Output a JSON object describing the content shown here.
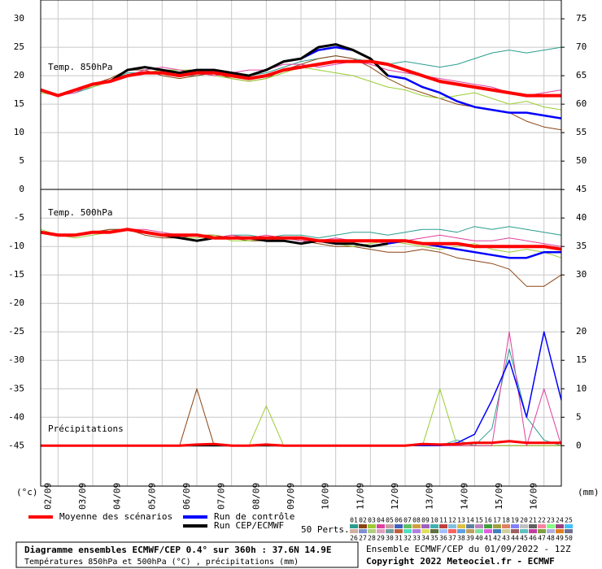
{
  "chart_data": {
    "type": "line",
    "x": [
      0,
      12,
      24,
      36,
      48,
      60,
      72,
      84,
      96,
      108,
      120,
      132,
      144,
      156,
      168,
      180,
      192,
      204,
      216,
      228,
      240,
      252,
      264,
      276,
      288,
      300,
      312,
      324,
      336,
      348,
      360
    ],
    "xlim": [
      0,
      360
    ],
    "xticks": [
      {
        "value": 12,
        "label": "02/09"
      },
      {
        "value": 36,
        "label": "03/09"
      },
      {
        "value": 60,
        "label": "04/09"
      },
      {
        "value": 84,
        "label": "05/09"
      },
      {
        "value": 108,
        "label": "06/09"
      },
      {
        "value": 132,
        "label": "07/09"
      },
      {
        "value": 156,
        "label": "08/09"
      },
      {
        "value": 180,
        "label": "09/09"
      },
      {
        "value": 204,
        "label": "10/09"
      },
      {
        "value": 228,
        "label": "11/09"
      },
      {
        "value": 252,
        "label": "12/09"
      },
      {
        "value": 276,
        "label": "13/09"
      },
      {
        "value": 300,
        "label": "14/09"
      },
      {
        "value": 324,
        "label": "15/09"
      },
      {
        "value": 348,
        "label": "16/09"
      }
    ],
    "ylim": [
      -52.1,
      33.3
    ],
    "yticks": [
      30,
      25,
      20,
      15,
      10,
      5,
      0,
      -5,
      -10,
      -15,
      -20,
      -25,
      -30,
      -35,
      -40,
      -45
    ],
    "y2lim": [
      -7.1,
      78.3
    ],
    "y2ticks": [
      75,
      70,
      65,
      60,
      55,
      50,
      45,
      40,
      35,
      30,
      20,
      15,
      10,
      5,
      0
    ],
    "y_unit": "(°c)",
    "y2_unit": "(mm)",
    "grid": true,
    "annotations": [
      "Temp. 850hPa",
      "Temp. 500hPa",
      "Précipitations"
    ],
    "series": [
      {
        "name": "Moyenne des scénarios",
        "color": "#ff0000",
        "t850": [
          17.5,
          16.5,
          17.5,
          18.5,
          19,
          20,
          20.5,
          20.5,
          20,
          20.5,
          20.5,
          20,
          19.5,
          20,
          21,
          21.5,
          22,
          22.5,
          22.5,
          22.5,
          22,
          21,
          20,
          19,
          18.5,
          18,
          17.5,
          17,
          16.5,
          16.5,
          16.5
        ],
        "t500": [
          -7.5,
          -8,
          -8,
          -7.5,
          -7.5,
          -7,
          -7.5,
          -8,
          -8,
          -8,
          -8.5,
          -8.5,
          -8.5,
          -8.5,
          -8.5,
          -8.5,
          -9,
          -9,
          -9,
          -9,
          -9,
          -9,
          -9.5,
          -9.5,
          -9.5,
          -10,
          -10,
          -10,
          -10,
          -10,
          -10.5
        ],
        "precip": [
          0,
          0,
          0,
          0,
          0,
          0,
          0,
          0,
          0,
          0.2,
          0.3,
          0,
          0,
          0.2,
          0,
          0,
          0,
          0,
          0,
          0,
          0,
          0,
          0.3,
          0.2,
          0.3,
          0.5,
          0.5,
          0.8,
          0.5,
          0.5,
          0.5
        ]
      },
      {
        "name": "Run de contrôle",
        "color": "#0000ff",
        "t850": [
          17.5,
          16.5,
          17.5,
          18.5,
          19,
          21,
          21.5,
          21,
          20.5,
          21,
          21,
          20.5,
          20,
          21,
          22.5,
          23,
          24.5,
          25,
          24.5,
          23,
          20,
          19.5,
          18,
          17,
          15.5,
          14.5,
          14,
          13.5,
          13.5,
          13,
          12.5
        ],
        "t500": [
          -7.5,
          -8,
          -8,
          -7.5,
          -7.5,
          -7,
          -7.5,
          -8,
          -8.5,
          -9,
          -8.5,
          -8.5,
          -8.5,
          -9,
          -9,
          -9.5,
          -9,
          -9.5,
          -9.5,
          -10,
          -9.5,
          -9,
          -9.5,
          -10,
          -10.5,
          -11,
          -11.5,
          -12,
          -12,
          -11,
          -11
        ],
        "precip": [
          0,
          0,
          0,
          0,
          0,
          0,
          0,
          0,
          0,
          0,
          0,
          0,
          0,
          0,
          0,
          0,
          0,
          0,
          0,
          0,
          0,
          0,
          0,
          0,
          0.5,
          2,
          8,
          15,
          5,
          20,
          8
        ]
      },
      {
        "name": "Run CEP/ECMWF",
        "color": "#000000",
        "t850": [
          17.5,
          16.5,
          17.5,
          18.5,
          19,
          21,
          21.5,
          21,
          20.5,
          21,
          21,
          20.5,
          20,
          21,
          22.5,
          23,
          25,
          25.5,
          24.5,
          23,
          20,
          null,
          null,
          null,
          null,
          null,
          null,
          null,
          null,
          null,
          null
        ],
        "t500": [
          -7.5,
          -8,
          -8,
          -7.5,
          -7.5,
          -7,
          -7.5,
          -8,
          -8.5,
          -9,
          -8.5,
          -8.5,
          -8.5,
          -9,
          -9,
          -9.5,
          -9,
          -9.5,
          -9.5,
          -10,
          -9.5,
          null,
          null,
          null,
          null,
          null,
          null,
          null,
          null,
          null,
          null
        ],
        "precip": [
          0,
          0,
          0,
          0,
          0,
          0,
          0,
          0,
          0,
          0,
          0,
          0,
          0,
          0,
          0,
          0,
          0,
          0,
          0,
          0,
          0,
          null,
          null,
          null,
          null,
          null,
          null,
          null,
          null,
          null,
          null
        ]
      }
    ],
    "perturbations": [
      {
        "name": "01",
        "color": "#2a9d8f",
        "t850": [
          17.5,
          16.5,
          17,
          18,
          19,
          20.5,
          20.5,
          21,
          20,
          20,
          20.5,
          20,
          20,
          20.5,
          21.5,
          22.5,
          23,
          23.5,
          23,
          22.5,
          22,
          22.5,
          22,
          21.5,
          22,
          23,
          24,
          24.5,
          24,
          24.5,
          25
        ],
        "t500": [
          -7.5,
          -8,
          -8,
          -7.5,
          -7,
          -7,
          -7.5,
          -8,
          -8,
          -8,
          -8.5,
          -8,
          -8,
          -8.5,
          -8,
          -8,
          -8.5,
          -8,
          -7.5,
          -7.5,
          -8,
          -7.5,
          -7,
          -7,
          -7.5,
          -6.5,
          -7,
          -6.5,
          -7,
          -7.5,
          -8
        ],
        "precip": [
          0,
          0,
          0,
          0,
          0,
          0,
          0,
          0,
          0,
          0,
          0,
          0,
          0,
          0,
          0,
          0,
          0,
          0,
          0,
          0,
          0,
          0,
          0,
          0,
          1,
          0,
          3,
          17,
          5,
          1,
          0
        ]
      },
      {
        "name": "02",
        "color": "#8b4513",
        "t850": [
          17.5,
          16.5,
          17.5,
          18.5,
          19.5,
          21,
          21,
          20,
          19.5,
          20,
          20.5,
          19.5,
          19,
          19.5,
          21,
          22,
          23,
          23.5,
          23,
          21.5,
          19.5,
          18,
          17,
          16,
          15,
          14.5,
          14,
          13.5,
          12,
          11,
          10.5
        ],
        "t500": [
          -7.5,
          -8,
          -8,
          -7.5,
          -7,
          -7,
          -8,
          -8.5,
          -8.5,
          -8,
          -8,
          -8.5,
          -9,
          -9,
          -8.5,
          -9,
          -9.5,
          -10,
          -10,
          -10.5,
          -11,
          -11,
          -10.5,
          -11,
          -12,
          -12.5,
          -13,
          -14,
          -17,
          -17,
          -15
        ],
        "precip": [
          0,
          0,
          0,
          0,
          0,
          0,
          0,
          0,
          0,
          10,
          0,
          0,
          0,
          0,
          0,
          0,
          0,
          0,
          0,
          0,
          0,
          0,
          0,
          0,
          0,
          0,
          0,
          0,
          0,
          0,
          0
        ]
      },
      {
        "name": "03",
        "color": "#9acd32",
        "t850": [
          17,
          16.5,
          17.5,
          18,
          19,
          20,
          20.5,
          21,
          21,
          21,
          20,
          19.5,
          19,
          19.5,
          20.5,
          21.5,
          21,
          20.5,
          20,
          19,
          18,
          17.5,
          16.5,
          16,
          16.5,
          17,
          16,
          15,
          15.5,
          14.5,
          14
        ],
        "t500": [
          -7,
          -8,
          -8.5,
          -8,
          -7.5,
          -7,
          -7.5,
          -8,
          -8.5,
          -8.5,
          -8,
          -9,
          -9,
          -8.5,
          -9,
          -9.5,
          -9,
          -9.5,
          -10,
          -9.5,
          -9,
          -9.5,
          -10,
          -10.5,
          -10,
          -9.5,
          -10.5,
          -11,
          -10.5,
          -11,
          -12
        ],
        "precip": [
          0,
          0,
          0,
          0,
          0,
          0,
          0,
          0,
          0,
          0,
          0,
          0,
          0,
          7,
          0,
          0,
          0,
          0,
          0,
          0,
          0,
          0,
          0,
          10,
          0,
          0,
          0,
          0,
          0,
          0,
          0
        ]
      },
      {
        "name": "04",
        "color": "#e040a0",
        "t850": [
          17.5,
          16.5,
          17,
          18.5,
          19,
          20,
          21,
          21.5,
          21,
          20.5,
          20,
          20.5,
          21,
          21,
          22,
          22,
          21.5,
          22,
          22.5,
          22,
          21,
          20.5,
          20,
          19.5,
          19,
          18.5,
          18,
          17,
          16.5,
          17,
          17.5
        ],
        "t500": [
          -7.5,
          -8,
          -8,
          -7.5,
          -7.5,
          -7,
          -7,
          -7.5,
          -8,
          -8,
          -8.5,
          -8,
          -8.5,
          -8,
          -8.5,
          -9,
          -9,
          -8.5,
          -9,
          -9,
          -9.5,
          -9,
          -8.5,
          -8,
          -8.5,
          -9,
          -9,
          -8.5,
          -9,
          -9.5,
          -10
        ],
        "precip": [
          0,
          0,
          0,
          0,
          0,
          0,
          0,
          0,
          0,
          0,
          0,
          0,
          0,
          0,
          0,
          0,
          0,
          0,
          0,
          0,
          0,
          0,
          0,
          0,
          0,
          0,
          0,
          20,
          0,
          10,
          0
        ]
      }
    ],
    "perturbation_label": "50 Perts.",
    "perturbation_codes": [
      "01",
      "02",
      "03",
      "04",
      "05",
      "06",
      "07",
      "08",
      "09",
      "10",
      "11",
      "12",
      "13",
      "14",
      "15",
      "16",
      "17",
      "18",
      "19",
      "20",
      "21",
      "22",
      "23",
      "24",
      "25",
      "26",
      "27",
      "28",
      "29",
      "30",
      "31",
      "32",
      "33",
      "34",
      "35",
      "36",
      "37",
      "38",
      "39",
      "40",
      "41",
      "42",
      "43",
      "44",
      "45",
      "46",
      "47",
      "48",
      "49",
      "50"
    ],
    "perturbation_colors": [
      "#2a9d8f",
      "#8b4513",
      "#9acd32",
      "#e040a0",
      "#c8a0a0",
      "#4060c0",
      "#60c060",
      "#d0a040",
      "#a060c0",
      "#40b0b0",
      "#c04040",
      "#80c0e0",
      "#e0c040",
      "#6080a0",
      "#c080c0",
      "#40a040",
      "#a0a040",
      "#e08060",
      "#8080ff",
      "#c0c0c0",
      "#606060",
      "#ff80a0",
      "#80ff80",
      "#a04080",
      "#40c0ff",
      "#d0b0a0",
      "#8090d0",
      "#b0d080",
      "#e0a0c0",
      "#70a0a0",
      "#c06040",
      "#50e0c0",
      "#b080e0",
      "#e0e060",
      "#607040",
      "#a0c0ff",
      "#ff6060",
      "#60a0e0",
      "#c0a060",
      "#80e0a0",
      "#e060e0",
      "#4080c0",
      "#d0d0a0",
      "#a06060",
      "#60c0c0",
      "#c040a0",
      "#80a040",
      "#b0b0e0",
      "#e08020",
      "#707090"
    ],
    "footer": {
      "title": "Diagramme ensembles ECMWF/CEP 0.4° sur 360h : 37.6N 14.9E",
      "subtitle": "Températures 850hPa et 500hPa (°C) , précipitations (mm)",
      "run": "Ensemble ECMWF/CEP du 01/09/2022 - 12Z",
      "copyright": "Copyright 2022 Meteociel.fr - ECMWF"
    }
  }
}
